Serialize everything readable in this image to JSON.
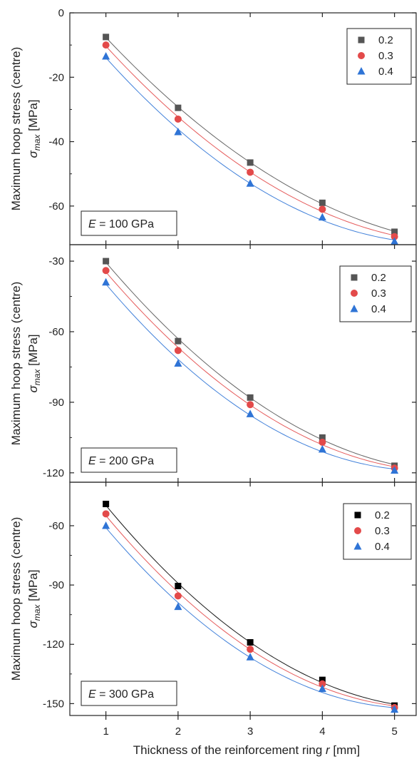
{
  "chart_data": [
    {
      "type": "scatter",
      "xlabel_prefix": "Thickness of the reinforcement ring ",
      "xlabel_var": "r",
      "xlabel_unit": " [mm]",
      "ylabel_line1": "Maximum hoop stress (centre)",
      "ylabel_sym": "σ",
      "ylabel_sub": "max",
      "ylabel_unit": "[MPa]",
      "annotation_var": "E",
      "annotation_rest": " = 100 GPa",
      "xlim": [
        0.5,
        5.3
      ],
      "ylim": [
        -72,
        0
      ],
      "xticks": [
        "1",
        "2",
        "3",
        "4",
        "5"
      ],
      "yticks": [
        "0",
        "-20",
        "-40",
        "-60"
      ],
      "ytick_values": [
        0,
        -20,
        -40,
        -60
      ],
      "legend_position": "top-right",
      "x": [
        1,
        2,
        3,
        4,
        5
      ],
      "series": [
        {
          "name": "0.2",
          "marker": "square",
          "color": "#555555",
          "values": [
            -7.5,
            -29.5,
            -46.5,
            -59,
            -68
          ]
        },
        {
          "name": "0.3",
          "marker": "circle",
          "color": "#e34a4a",
          "values": [
            -10,
            -33,
            -49.5,
            -61,
            -69.5
          ]
        },
        {
          "name": "0.4",
          "marker": "triangle",
          "color": "#2f74d6",
          "values": [
            -13.5,
            -37,
            -53,
            -63.5,
            -71
          ]
        }
      ]
    },
    {
      "type": "scatter",
      "ylabel_line1": "Maximum hoop stress (centre)",
      "ylabel_sym": "σ",
      "ylabel_sub": "max",
      "ylabel_unit": "[MPa]",
      "annotation_var": "E",
      "annotation_rest": " = 200 GPa",
      "xlim": [
        0.5,
        5.3
      ],
      "ylim": [
        -124,
        -23
      ],
      "xticks": [
        "1",
        "2",
        "3",
        "4",
        "5"
      ],
      "yticks": [
        "-30",
        "-60",
        "-90",
        "-120"
      ],
      "ytick_values": [
        -30,
        -60,
        -90,
        -120
      ],
      "legend_position": "top-right",
      "x": [
        1,
        2,
        3,
        4,
        5
      ],
      "series": [
        {
          "name": "0.2",
          "marker": "square",
          "color": "#555555",
          "values": [
            -30,
            -64,
            -88,
            -105,
            -117
          ]
        },
        {
          "name": "0.3",
          "marker": "circle",
          "color": "#e34a4a",
          "values": [
            -34,
            -68,
            -91,
            -107,
            -118
          ]
        },
        {
          "name": "0.4",
          "marker": "triangle",
          "color": "#2f74d6",
          "values": [
            -39,
            -73.5,
            -95,
            -110,
            -119
          ]
        }
      ]
    },
    {
      "type": "scatter",
      "ylabel_line1": "Maximum hoop stress (centre)",
      "ylabel_sym": "σ",
      "ylabel_sub": "max",
      "ylabel_unit": "[MPa]",
      "annotation_var": "E",
      "annotation_rest": " = 300 GPa",
      "xlim": [
        0.5,
        5.3
      ],
      "ylim": [
        -156,
        -38
      ],
      "xticks": [
        "1",
        "2",
        "3",
        "4",
        "5"
      ],
      "yticks": [
        "-60",
        "-90",
        "-120",
        "-150"
      ],
      "ytick_values": [
        -60,
        -90,
        -120,
        -150
      ],
      "legend_position": "top-right",
      "x": [
        1,
        2,
        3,
        4,
        5
      ],
      "series": [
        {
          "name": "0.2",
          "marker": "square",
          "color": "#000000",
          "values": [
            -49,
            -90.5,
            -119,
            -138,
            -151
          ]
        },
        {
          "name": "0.3",
          "marker": "circle",
          "color": "#e34a4a",
          "values": [
            -54,
            -95.5,
            -122.5,
            -140,
            -152
          ]
        },
        {
          "name": "0.4",
          "marker": "triangle",
          "color": "#2f74d6",
          "values": [
            -60,
            -101,
            -126.5,
            -142.5,
            -153
          ]
        }
      ]
    }
  ]
}
